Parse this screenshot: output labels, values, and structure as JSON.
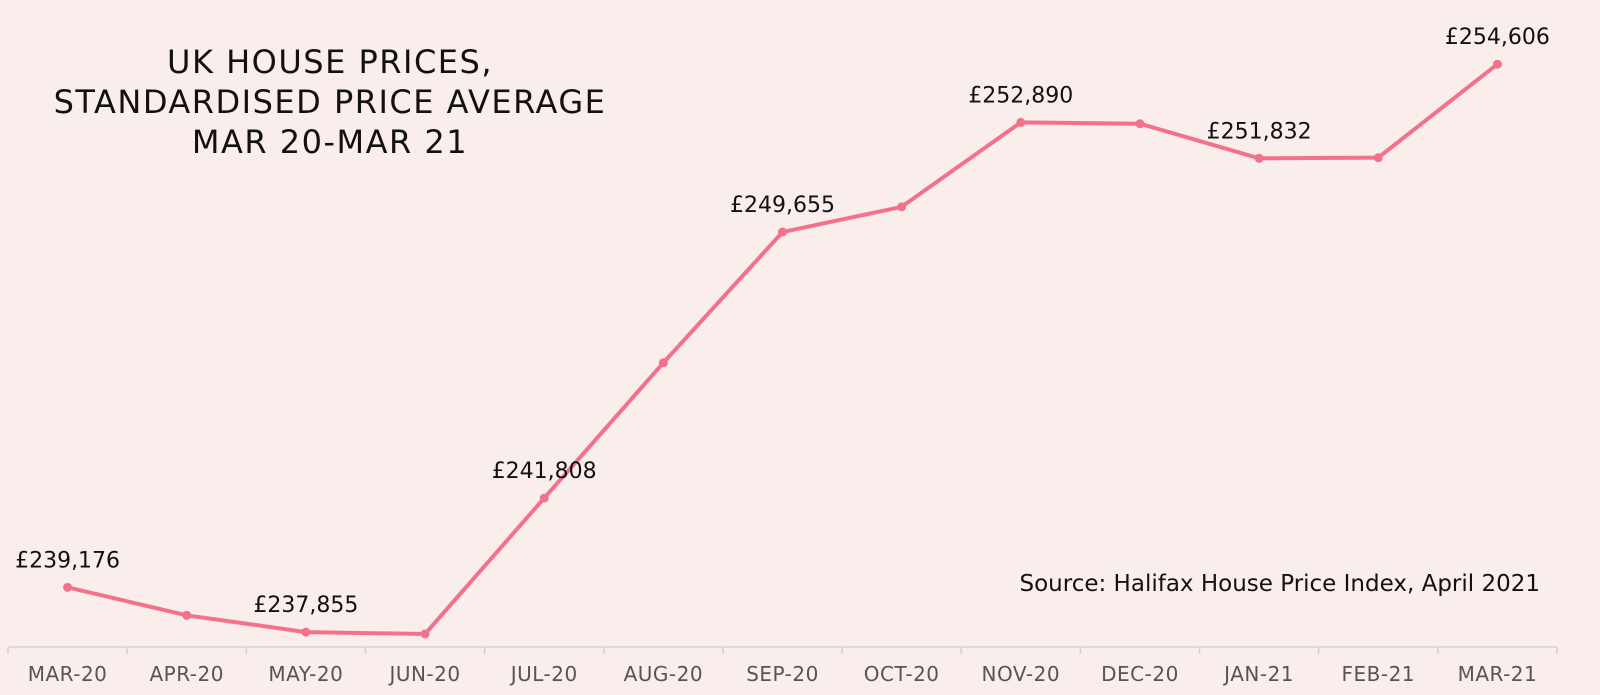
{
  "chart_data": {
    "type": "line",
    "title_lines": [
      "UK HOUSE PRICES,",
      "STANDARDISED PRICE AVERAGE",
      "MAR 20-MAR 21"
    ],
    "source": "Source: Halifax House Price Index, April 2021",
    "categories": [
      "MAR-20",
      "APR-20",
      "MAY-20",
      "JUN-20",
      "JUL-20",
      "AUG-20",
      "SEP-20",
      "OCT-20",
      "NOV-20",
      "DEC-20",
      "JAN-21",
      "FEB-21",
      "MAR-21"
    ],
    "values": [
      239176,
      238350,
      237855,
      237800,
      241808,
      245800,
      249655,
      250400,
      252890,
      252850,
      251832,
      251850,
      254606
    ],
    "data_labels": [
      {
        "index": 0,
        "text": "£239,176"
      },
      {
        "index": 2,
        "text": "£237,855"
      },
      {
        "index": 4,
        "text": "£241,808"
      },
      {
        "index": 6,
        "text": "£249,655"
      },
      {
        "index": 8,
        "text": "£252,890"
      },
      {
        "index": 10,
        "text": "£251,832"
      },
      {
        "index": 12,
        "text": "£254,606"
      }
    ],
    "ylim": [
      236000,
      256500
    ],
    "grid": false,
    "legend": "none",
    "line_color": "#f4718c",
    "background_color": "#f9eeeb"
  }
}
